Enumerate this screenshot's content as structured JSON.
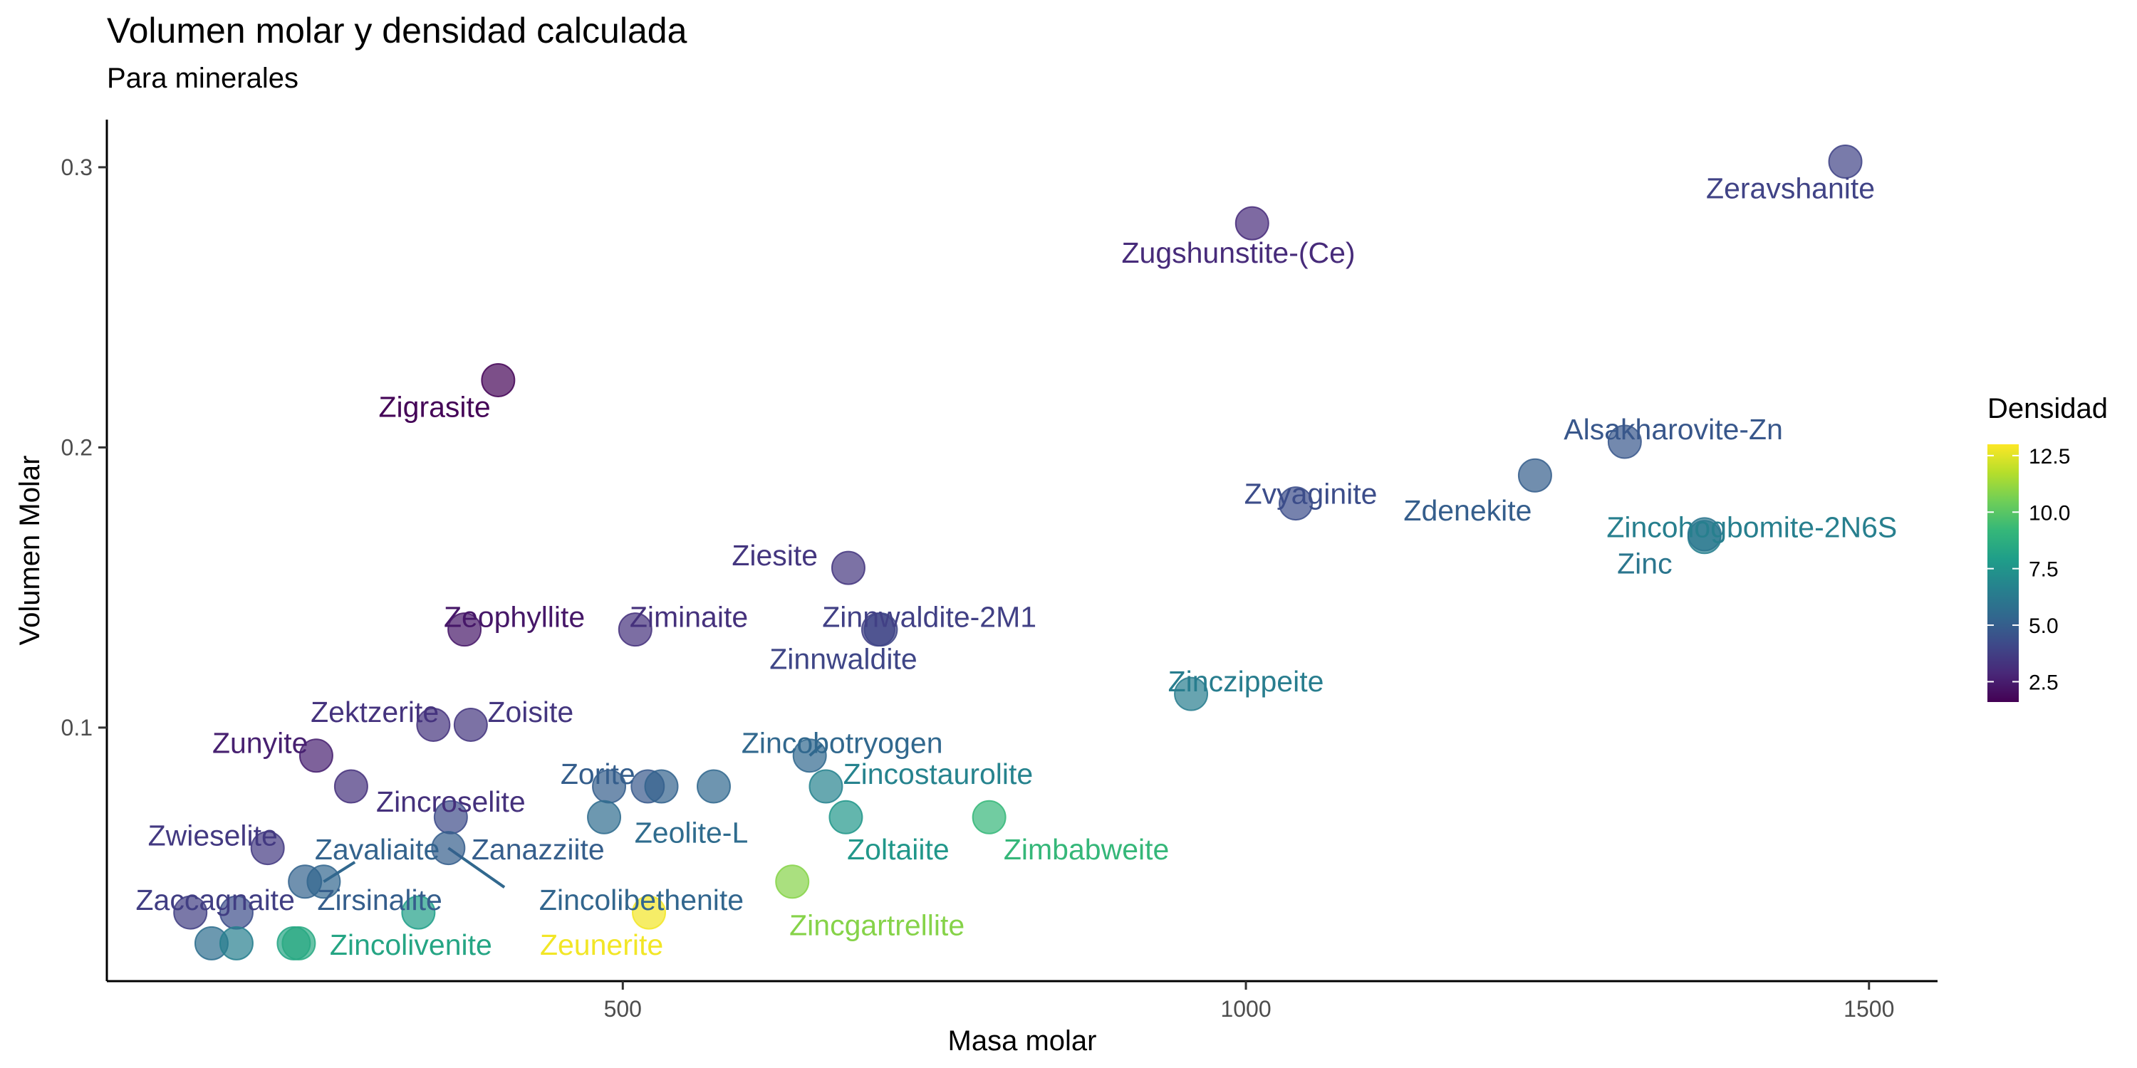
{
  "chart_data": {
    "type": "scatter",
    "title": "Volumen molar y densidad calculada",
    "subtitle": "Para minerales",
    "xlabel": "Masa molar",
    "ylabel": "Volumen Molar",
    "xlim": [
      86,
      1555
    ],
    "ylim": [
      0.0095,
      0.317
    ],
    "x_ticks": [
      500,
      1000,
      1500
    ],
    "y_ticks": [
      0.1,
      0.2,
      0.3
    ],
    "x_tick_labels": [
      "500",
      "1000",
      "1500"
    ],
    "y_tick_labels": [
      "0.1",
      "0.2",
      "0.3"
    ],
    "grid": false,
    "color_scale": {
      "name": "viridis",
      "title": "Densidad",
      "min": 1.6,
      "max": 13.0,
      "breaks": [
        2.5,
        5.0,
        7.5,
        10.0,
        12.5
      ],
      "break_labels": [
        "2.5",
        "5.0",
        "7.5",
        "10.0",
        "12.5"
      ],
      "stops": [
        "#440154",
        "#482878",
        "#3e4989",
        "#31688e",
        "#26828e",
        "#1f9e89",
        "#35b779",
        "#6ece58",
        "#b5de2b",
        "#fde725"
      ]
    },
    "points": [
      {
        "x": 1481,
        "y": 0.302,
        "d": 3.9
      },
      {
        "x": 1005,
        "y": 0.28,
        "d": 3.0
      },
      {
        "x": 400,
        "y": 0.224,
        "d": 1.7
      },
      {
        "x": 1304,
        "y": 0.202,
        "d": 4.7
      },
      {
        "x": 1232,
        "y": 0.19,
        "d": 5.0
      },
      {
        "x": 1040,
        "y": 0.18,
        "d": 4.3
      },
      {
        "x": 1368,
        "y": 0.168,
        "d": 6.5
      },
      {
        "x": 1368,
        "y": 0.169,
        "d": 6.1
      },
      {
        "x": 681,
        "y": 0.157,
        "d": 3.4
      },
      {
        "x": 373,
        "y": 0.135,
        "d": 2.3
      },
      {
        "x": 510,
        "y": 0.135,
        "d": 3.2
      },
      {
        "x": 705,
        "y": 0.135,
        "d": 3.8
      },
      {
        "x": 707,
        "y": 0.135,
        "d": 4.0
      },
      {
        "x": 956,
        "y": 0.112,
        "d": 6.4
      },
      {
        "x": 348,
        "y": 0.101,
        "d": 3.3
      },
      {
        "x": 378,
        "y": 0.101,
        "d": 3.4
      },
      {
        "x": 254,
        "y": 0.09,
        "d": 2.6
      },
      {
        "x": 650,
        "y": 0.09,
        "d": 5.4
      },
      {
        "x": 282,
        "y": 0.079,
        "d": 3.2
      },
      {
        "x": 489,
        "y": 0.079,
        "d": 5.0
      },
      {
        "x": 520,
        "y": 0.079,
        "d": 4.8
      },
      {
        "x": 531,
        "y": 0.079,
        "d": 5.2
      },
      {
        "x": 573,
        "y": 0.079,
        "d": 5.4
      },
      {
        "x": 663,
        "y": 0.079,
        "d": 6.7
      },
      {
        "x": 362,
        "y": 0.068,
        "d": 4.2
      },
      {
        "x": 485,
        "y": 0.068,
        "d": 5.6
      },
      {
        "x": 679,
        "y": 0.068,
        "d": 7.6
      },
      {
        "x": 794,
        "y": 0.068,
        "d": 9.2
      },
      {
        "x": 215,
        "y": 0.057,
        "d": 3.5
      },
      {
        "x": 360,
        "y": 0.057,
        "d": 5.0
      },
      {
        "x": 245,
        "y": 0.045,
        "d": 5.2
      },
      {
        "x": 260,
        "y": 0.045,
        "d": 5.3
      },
      {
        "x": 636,
        "y": 0.045,
        "d": 10.9
      },
      {
        "x": 153,
        "y": 0.034,
        "d": 3.7
      },
      {
        "x": 190,
        "y": 0.034,
        "d": 4.3
      },
      {
        "x": 336,
        "y": 0.034,
        "d": 8.0
      },
      {
        "x": 521,
        "y": 0.034,
        "d": 12.8
      },
      {
        "x": 170,
        "y": 0.023,
        "d": 5.7
      },
      {
        "x": 190,
        "y": 0.023,
        "d": 6.5
      },
      {
        "x": 236,
        "y": 0.023,
        "d": 8.3
      },
      {
        "x": 240,
        "y": 0.023,
        "d": 8.5
      }
    ],
    "labels": [
      {
        "text": "Zeravshanite",
        "x": 1437,
        "y": 0.2925,
        "d": 3.9
      },
      {
        "text": "Zugshunstite-(Ce)",
        "x": 994,
        "y": 0.2695,
        "d": 3.0
      },
      {
        "text": "Zigrasite",
        "x": 349,
        "y": 0.2145,
        "d": 1.7
      },
      {
        "text": "Alsakharovite-Zn",
        "x": 1343,
        "y": 0.2065,
        "d": 4.7
      },
      {
        "text": "Zvyaginite",
        "x": 1052,
        "y": 0.1835,
        "d": 4.3
      },
      {
        "text": "Zdenekite",
        "x": 1178,
        "y": 0.1775,
        "d": 5.0
      },
      {
        "text": "Zincohogbomite-2N6S",
        "x": 1406,
        "y": 0.1715,
        "d": 6.5
      },
      {
        "text": "Zinc",
        "x": 1320,
        "y": 0.1585,
        "d": 6.1
      },
      {
        "text": "Ziesite",
        "x": 622,
        "y": 0.1615,
        "d": 3.4
      },
      {
        "text": "Zeophyllite",
        "x": 413,
        "y": 0.1395,
        "d": 2.3
      },
      {
        "text": "Ziminaite",
        "x": 553,
        "y": 0.1395,
        "d": 3.2
      },
      {
        "text": "Zinnwaldite-2M1",
        "x": 746,
        "y": 0.1395,
        "d": 3.8
      },
      {
        "text": "Zinnwaldite",
        "x": 677,
        "y": 0.1245,
        "d": 4.0
      },
      {
        "text": "Zinczippeite",
        "x": 1000,
        "y": 0.1165,
        "d": 6.4
      },
      {
        "text": "Zektzerite",
        "x": 301,
        "y": 0.1055,
        "d": 3.3
      },
      {
        "text": "Zoisite",
        "x": 426,
        "y": 0.1055,
        "d": 3.4
      },
      {
        "text": "Zunyite",
        "x": 209,
        "y": 0.0945,
        "d": 2.6
      },
      {
        "text": "Zincobotryogen",
        "x": 676,
        "y": 0.0945,
        "d": 5.4
      },
      {
        "text": "Zincroselite",
        "x": 362,
        "y": 0.0735,
        "d": 3.2
      },
      {
        "text": "Zorite",
        "x": 480,
        "y": 0.0835,
        "d": 5.0
      },
      {
        "text": "Zeolite-L",
        "x": 555,
        "y": 0.0625,
        "d": 5.6
      },
      {
        "text": "Zincostaurolite",
        "x": 753,
        "y": 0.0835,
        "d": 6.7
      },
      {
        "text": "Zwieselite",
        "x": 171,
        "y": 0.0615,
        "d": 3.5
      },
      {
        "text": "Zavaliaite",
        "x": 303,
        "y": 0.0565,
        "d": 5.2
      },
      {
        "text": "Zanazziite",
        "x": 432,
        "y": 0.0565,
        "d": 5.0
      },
      {
        "text": "Zoltaiite",
        "x": 721,
        "y": 0.0565,
        "d": 7.6
      },
      {
        "text": "Zimbabweite",
        "x": 872,
        "y": 0.0565,
        "d": 9.2
      },
      {
        "text": "Zaccagnaite",
        "x": 173,
        "y": 0.0385,
        "d": 3.7
      },
      {
        "text": "Zirsinalite",
        "x": 305,
        "y": 0.0385,
        "d": 5.0
      },
      {
        "text": "Zincolibethenite",
        "x": 515,
        "y": 0.0385,
        "d": 5.3
      },
      {
        "text": "Zincgartrellite",
        "x": 704,
        "y": 0.0295,
        "d": 10.9
      },
      {
        "text": "Zincolivenite",
        "x": 330,
        "y": 0.0225,
        "d": 8.3
      },
      {
        "text": "Zeunerite",
        "x": 483,
        "y": 0.0225,
        "d": 12.8
      }
    ],
    "leader_lines": [
      {
        "from": [
          260,
          0.045
        ],
        "to": [
          285,
          0.052
        ]
      },
      {
        "from": [
          360,
          0.057
        ],
        "to": [
          405,
          0.043
        ]
      },
      {
        "from": [
          650,
          0.09
        ],
        "to": [
          660,
          0.094
        ]
      }
    ]
  }
}
